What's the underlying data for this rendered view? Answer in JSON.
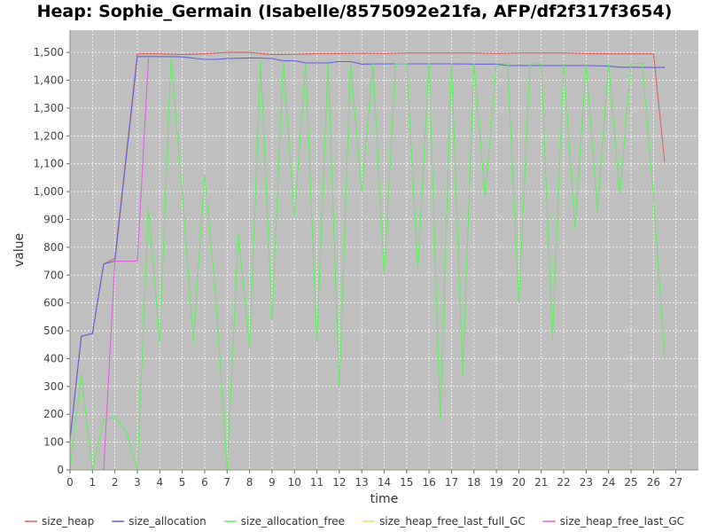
{
  "chart_data": {
    "type": "line",
    "title": "Heap: Sophie_Germain (Isabelle/8575092e21fa, AFP/df2f317f3654)",
    "xlabel": "time",
    "ylabel": "value",
    "xlim": [
      0,
      28
    ],
    "ylim": [
      0,
      1580
    ],
    "x_ticks": [
      0,
      1,
      2,
      3,
      4,
      5,
      6,
      7,
      8,
      9,
      10,
      11,
      12,
      13,
      14,
      15,
      16,
      17,
      18,
      19,
      20,
      21,
      22,
      23,
      24,
      25,
      26,
      27
    ],
    "y_ticks": [
      0,
      100,
      200,
      300,
      400,
      500,
      600,
      700,
      800,
      900,
      1000,
      1100,
      1200,
      1300,
      1400,
      1500
    ],
    "y_tick_labels": [
      "0",
      "100",
      "200",
      "300",
      "400",
      "500",
      "600",
      "700",
      "800",
      "900",
      "1,000",
      "1,100",
      "1,200",
      "1,300",
      "1,400",
      "1,500"
    ],
    "grid": true,
    "legend_position": "bottom",
    "background": "#c0c0c0",
    "series": [
      {
        "name": "size_heap",
        "color": "#e06060",
        "x": [
          0,
          0.5,
          1,
          1.5,
          2,
          3,
          4,
          5,
          6,
          7,
          8,
          9,
          10,
          11,
          12,
          13,
          14,
          15,
          16,
          17,
          18,
          19,
          20,
          21,
          22,
          23,
          24,
          25,
          26,
          26.5
        ],
        "y": [
          110,
          480,
          490,
          740,
          760,
          1495,
          1495,
          1492,
          1495,
          1500,
          1500,
          1492,
          1493,
          1496,
          1496,
          1497,
          1496,
          1498,
          1498,
          1498,
          1498,
          1496,
          1498,
          1498,
          1498,
          1496,
          1495,
          1495,
          1495,
          1105
        ]
      },
      {
        "name": "size_allocation",
        "color": "#6060e0",
        "x": [
          0,
          0.5,
          1,
          1.5,
          2,
          3,
          4,
          5,
          6,
          6.5,
          7,
          8,
          8.5,
          9,
          9.5,
          10,
          10.5,
          11,
          11.5,
          12,
          12.5,
          13,
          14,
          15,
          16,
          17,
          18,
          19,
          19.5,
          20,
          21,
          22,
          23,
          24,
          24.5,
          25,
          26,
          26.5
        ],
        "y": [
          110,
          480,
          490,
          740,
          750,
          1485,
          1485,
          1484,
          1475,
          1475,
          1478,
          1480,
          1480,
          1478,
          1470,
          1470,
          1462,
          1462,
          1462,
          1467,
          1467,
          1458,
          1459,
          1459,
          1459,
          1459,
          1458,
          1458,
          1453,
          1453,
          1453,
          1453,
          1453,
          1451,
          1447,
          1447,
          1446,
          1446
        ]
      },
      {
        "name": "size_allocation_free",
        "color": "#60f060",
        "x": [
          0,
          0.5,
          1,
          1.5,
          2,
          2.5,
          3,
          3.5,
          4,
          4.5,
          5,
          5.5,
          6,
          6.5,
          7,
          7.5,
          8,
          8.5,
          9,
          9.5,
          10,
          10.5,
          11,
          11.5,
          12,
          12.5,
          13,
          13.5,
          14,
          14.5,
          15,
          15.5,
          16,
          16.5,
          17,
          17.5,
          18,
          18.5,
          19,
          19.5,
          20,
          20.5,
          21,
          21.5,
          22,
          22.5,
          23,
          23.5,
          24,
          24.5,
          25,
          25.5,
          26,
          26.5
        ],
        "y": [
          0,
          340,
          0,
          180,
          190,
          140,
          0,
          940,
          460,
          1480,
          1000,
          460,
          1060,
          620,
          0,
          850,
          440,
          1470,
          540,
          1470,
          910,
          1460,
          460,
          1460,
          300,
          1460,
          1000,
          1460,
          700,
          1460,
          1460,
          720,
          1460,
          180,
          1460,
          340,
          1460,
          980,
          1460,
          1460,
          600,
          1460,
          1460,
          470,
          1460,
          870,
          1460,
          930,
          1460,
          990,
          1460,
          1460,
          980,
          400
        ]
      },
      {
        "name": "size_heap_free_last_full_GC",
        "color": "#e0e060",
        "x": [
          0,
          26.5
        ],
        "y": [
          2,
          2
        ]
      },
      {
        "name": "size_heap_free_last_GC",
        "color": "#e060e0",
        "x": [
          1.5,
          2,
          3,
          3.5
        ],
        "y": [
          0,
          750,
          750,
          1480
        ]
      }
    ]
  }
}
